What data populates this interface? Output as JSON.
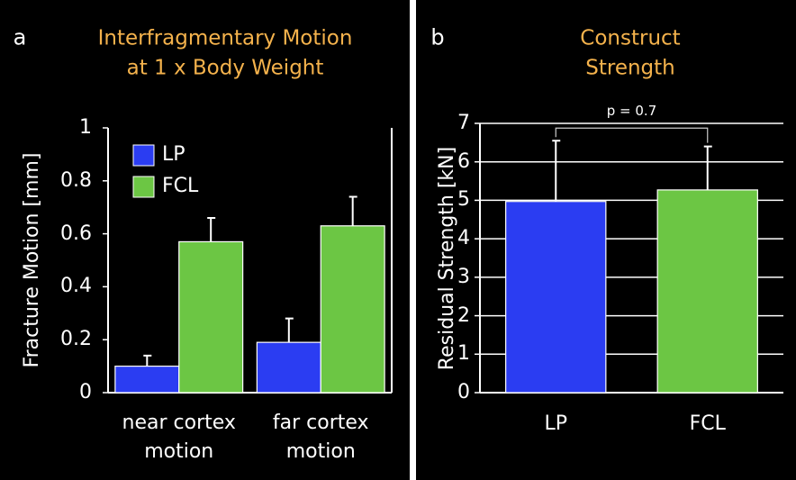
{
  "chart_data": [
    {
      "type": "bar",
      "panel": "a",
      "title": "Interfragmentary Motion\nat 1 x Body Weight",
      "ylabel": "Fracture Motion [mm]",
      "categories": [
        "near cortex\nmotion",
        "far cortex\nmotion"
      ],
      "series": [
        {
          "name": "LP",
          "color": "#2b3df2",
          "values": [
            0.1,
            0.19
          ],
          "errors": [
            0.04,
            0.09
          ]
        },
        {
          "name": "FCL",
          "color": "#6cc644",
          "values": [
            0.57,
            0.63
          ],
          "errors": [
            0.09,
            0.11
          ]
        }
      ],
      "ylim": [
        0,
        1
      ],
      "yticks": [
        0,
        0.2,
        0.4,
        0.6,
        0.8,
        1
      ],
      "grid": false,
      "legend": "upper left"
    },
    {
      "type": "bar",
      "panel": "b",
      "title": "Construct Strength",
      "ylabel": "Residual Strength [kN]",
      "categories": [
        "LP",
        "FCL"
      ],
      "series": [
        {
          "colors": [
            "#2b3df2",
            "#6cc644"
          ],
          "values": [
            4.97,
            5.27
          ],
          "errors": [
            1.58,
            1.13
          ]
        }
      ],
      "annotation": "p = 0.7",
      "ylim": [
        0,
        7
      ],
      "yticks": [
        0,
        1,
        2,
        3,
        4,
        5,
        6,
        7
      ],
      "grid": true
    }
  ]
}
